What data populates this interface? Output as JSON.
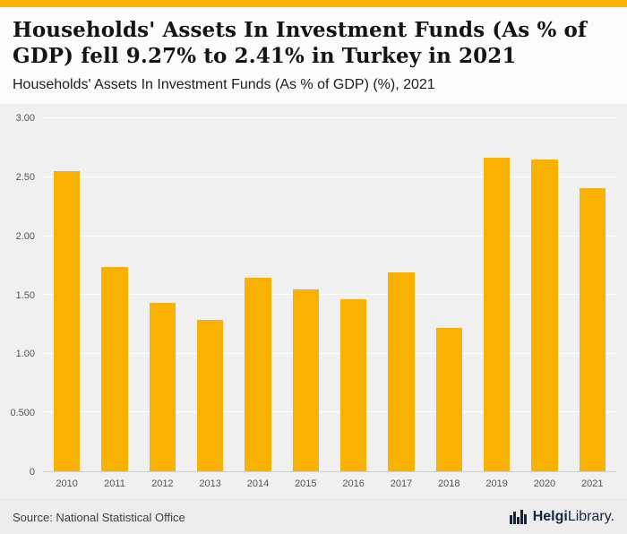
{
  "accent_color": "#f9b104",
  "header": {
    "title": "Households' Assets In Investment Funds (As % of GDP) fell 9.27% to 2.41% in Turkey in 2021",
    "subtitle": "Households' Assets In Investment Funds (As % of GDP) (%), 2021"
  },
  "chart_data": {
    "type": "bar",
    "title": "Households' Assets In Investment Funds (As % of GDP) (%), 2021",
    "categories": [
      "2010",
      "2011",
      "2012",
      "2013",
      "2014",
      "2015",
      "2016",
      "2017",
      "2018",
      "2019",
      "2020",
      "2021"
    ],
    "values": [
      2.55,
      1.74,
      1.43,
      1.29,
      1.65,
      1.55,
      1.46,
      1.69,
      1.22,
      2.67,
      2.65,
      2.41
    ],
    "xlabel": "",
    "ylabel": "",
    "ylim": [
      0,
      3.0
    ],
    "yticks": [
      {
        "label": "3.00",
        "value": 3.0
      },
      {
        "label": "2.50",
        "value": 2.5
      },
      {
        "label": "2.00",
        "value": 2.0
      },
      {
        "label": "1.50",
        "value": 1.5
      },
      {
        "label": "1.00",
        "value": 1.0
      },
      {
        "label": "0.500",
        "value": 0.5
      },
      {
        "label": "0",
        "value": 0
      }
    ],
    "bar_color": "#f9b104",
    "grid": true,
    "legend": false
  },
  "footer": {
    "source": "Source: National Statistical Office",
    "logo_bold": "Helgi",
    "logo_rest": "Library."
  }
}
